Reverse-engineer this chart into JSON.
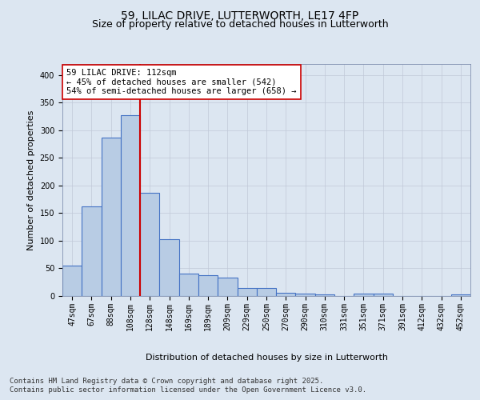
{
  "title_line1": "59, LILAC DRIVE, LUTTERWORTH, LE17 4FP",
  "title_line2": "Size of property relative to detached houses in Lutterworth",
  "xlabel": "Distribution of detached houses by size in Lutterworth",
  "ylabel": "Number of detached properties",
  "categories": [
    "47sqm",
    "67sqm",
    "88sqm",
    "108sqm",
    "128sqm",
    "148sqm",
    "169sqm",
    "189sqm",
    "209sqm",
    "229sqm",
    "250sqm",
    "270sqm",
    "290sqm",
    "310sqm",
    "331sqm",
    "351sqm",
    "371sqm",
    "391sqm",
    "412sqm",
    "432sqm",
    "452sqm"
  ],
  "values": [
    55,
    162,
    287,
    327,
    187,
    103,
    40,
    38,
    34,
    15,
    15,
    6,
    4,
    3,
    0,
    4,
    4,
    0,
    0,
    0,
    3
  ],
  "bar_color": "#b8cce4",
  "bar_edge_color": "#4472c4",
  "bar_edge_width": 0.8,
  "ylim": [
    0,
    420
  ],
  "yticks": [
    0,
    50,
    100,
    150,
    200,
    250,
    300,
    350,
    400
  ],
  "grid_color": "#c0c8d8",
  "background_color": "#dce6f1",
  "plot_bg_color": "#dce6f1",
  "red_line_index": 3,
  "annotation_text": "59 LILAC DRIVE: 112sqm\n← 45% of detached houses are smaller (542)\n54% of semi-detached houses are larger (658) →",
  "annotation_box_color": "#ffffff",
  "annotation_box_edge": "#cc0000",
  "red_line_color": "#cc0000",
  "footnote1": "Contains HM Land Registry data © Crown copyright and database right 2025.",
  "footnote2": "Contains public sector information licensed under the Open Government Licence v3.0.",
  "title_fontsize": 10,
  "subtitle_fontsize": 9,
  "tick_fontsize": 7,
  "ylabel_fontsize": 8,
  "xlabel_fontsize": 8,
  "annotation_fontsize": 7.5,
  "footnote_fontsize": 6.5
}
